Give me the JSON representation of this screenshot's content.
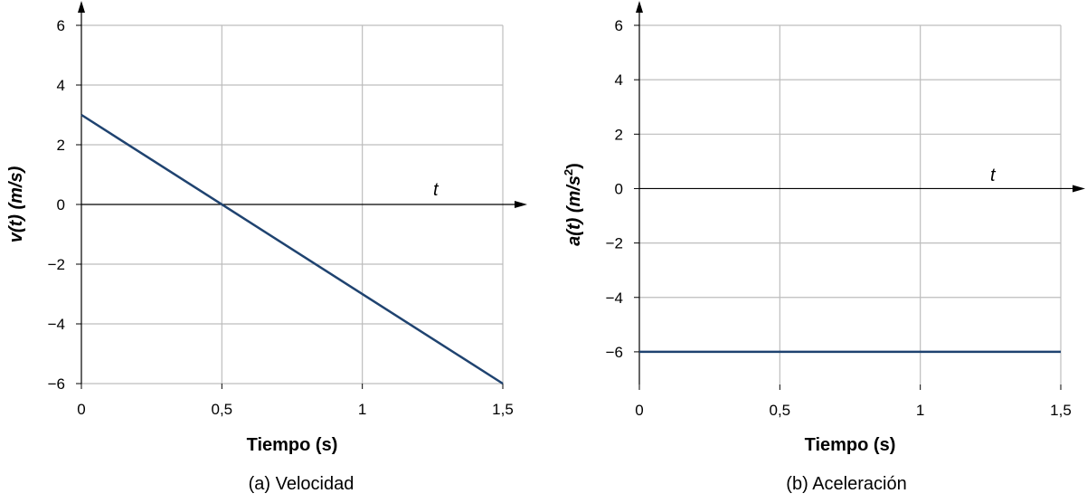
{
  "chart_data": [
    {
      "type": "line",
      "caption": "(a) Velocidad",
      "xlabel": "Tiempo (s)",
      "ylabel": "v(t) (m/s)",
      "axis_var_label": "t",
      "xlim": [
        0,
        1.5
      ],
      "ylim": [
        -6,
        6
      ],
      "xticks": [
        0,
        0.5,
        1,
        1.5
      ],
      "xtick_labels": [
        "0",
        "0,5",
        "1",
        "1,5"
      ],
      "yticks": [
        6,
        4,
        2,
        0,
        -2,
        -4,
        -6
      ],
      "ytick_labels": [
        "6",
        "4",
        "2",
        "0",
        "−2",
        "−4",
        "−6"
      ],
      "grid": true,
      "series": [
        {
          "x": [
            0,
            1.5
          ],
          "y": [
            3,
            -6
          ],
          "color": "#1f4370"
        }
      ]
    },
    {
      "type": "line",
      "caption": "(b) Aceleración",
      "xlabel": "Tiempo (s)",
      "ylabel": "a(t) (m/s",
      "ylabel_sup": "2",
      "ylabel_end": ")",
      "axis_var_label": "t",
      "xlim": [
        0,
        1.5
      ],
      "ylim": [
        -7.2,
        6
      ],
      "xticks": [
        0,
        0.5,
        1,
        1.5
      ],
      "xtick_labels": [
        "0",
        "0,5",
        "1",
        "1,5"
      ],
      "yticks": [
        6,
        4,
        2,
        0,
        -2,
        -4,
        -6
      ],
      "ytick_labels": [
        "6",
        "4",
        "2",
        "0",
        "−2",
        "−4",
        "−6"
      ],
      "grid": true,
      "series": [
        {
          "x": [
            0,
            1.5
          ],
          "y": [
            -6,
            -6
          ],
          "color": "#1f4370"
        }
      ]
    }
  ]
}
